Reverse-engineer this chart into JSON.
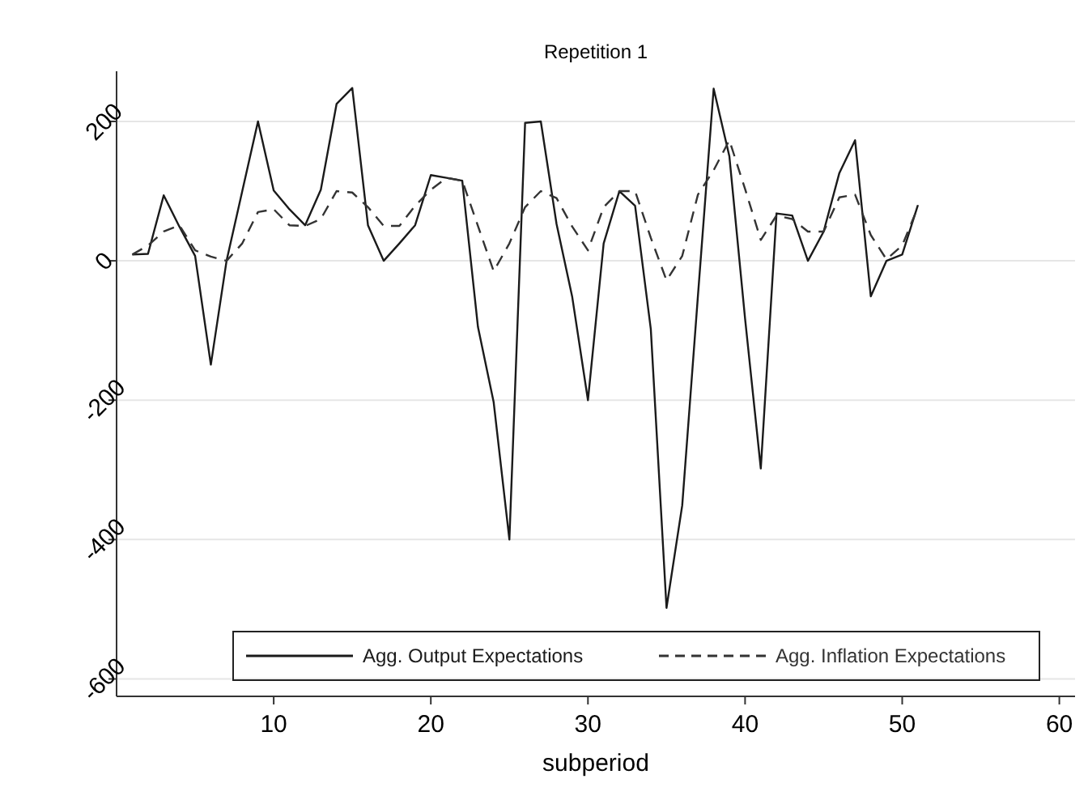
{
  "chart_data": {
    "type": "line",
    "title": "Repetition 1",
    "xlabel": "subperiod",
    "x": [
      1,
      2,
      3,
      4,
      5,
      6,
      7,
      8,
      9,
      10,
      11,
      12,
      13,
      14,
      15,
      16,
      17,
      18,
      19,
      20,
      21,
      22,
      23,
      24,
      25,
      26,
      27,
      28,
      29,
      30,
      31,
      32,
      33,
      34,
      35,
      36,
      37,
      38,
      39,
      40,
      41,
      42,
      43,
      44,
      45,
      46,
      47,
      48,
      49,
      50,
      51
    ],
    "series": [
      {
        "name": "Agg. Output Expectations",
        "color": "#1a1a1a",
        "line_style": "solid",
        "values": [
          9,
          10,
          94,
          49,
          7,
          -149,
          0,
          100,
          200,
          101,
          74,
          51,
          102,
          225,
          248,
          51,
          0,
          25,
          51,
          123,
          119,
          115,
          -95,
          -203,
          -400,
          198,
          200,
          53,
          -52,
          -200,
          25,
          100,
          79,
          -98,
          -498,
          -351,
          -50,
          247,
          150,
          -83,
          -298,
          68,
          65,
          0,
          42,
          126,
          173,
          -51,
          0,
          9,
          80
        ]
      },
      {
        "name": "Agg. Inflation Expectations",
        "color": "#333333",
        "line_style": "dashed",
        "values": [
          9,
          22,
          42,
          51,
          15,
          6,
          0,
          25,
          70,
          74,
          51,
          50,
          60,
          100,
          98,
          77,
          50,
          50,
          79,
          102,
          119,
          115,
          50,
          -15,
          25,
          77,
          100,
          90,
          49,
          15,
          77,
          100,
          100,
          33,
          -28,
          7,
          95,
          130,
          173,
          103,
          30,
          65,
          60,
          42,
          42,
          91,
          95,
          37,
          2,
          22,
          77
        ]
      }
    ],
    "xlim": [
      0,
      61
    ],
    "xticks": [
      10,
      20,
      30,
      40,
      50,
      60
    ],
    "ylim": [
      -625,
      272
    ],
    "yticks": [
      -600,
      -400,
      -200,
      0,
      200
    ],
    "grid": "y",
    "legend": "bottom",
    "marker": "none"
  }
}
